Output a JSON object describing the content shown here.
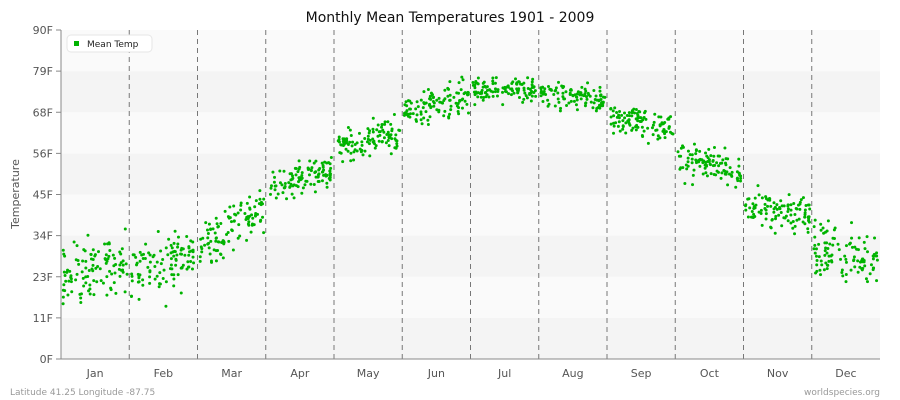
{
  "chart_data": {
    "type": "scatter",
    "title": "Monthly Mean Temperatures 1901 - 2009",
    "xlabel": "",
    "ylabel": "Temperature",
    "ylim": [
      0,
      90
    ],
    "yticks": [
      {
        "value": 0,
        "label": "0F"
      },
      {
        "value": 11.25,
        "label": "11F"
      },
      {
        "value": 22.5,
        "label": "23F"
      },
      {
        "value": 33.75,
        "label": "34F"
      },
      {
        "value": 45,
        "label": "45F"
      },
      {
        "value": 56.25,
        "label": "56F"
      },
      {
        "value": 67.5,
        "label": "68F"
      },
      {
        "value": 78.75,
        "label": "79F"
      },
      {
        "value": 90,
        "label": "90F"
      }
    ],
    "categories": [
      "Jan",
      "Feb",
      "Mar",
      "Apr",
      "May",
      "Jun",
      "Jul",
      "Aug",
      "Sep",
      "Oct",
      "Nov",
      "Dec"
    ],
    "points_per_month": 109,
    "grid": true,
    "legend": {
      "position": "top-left",
      "entries": [
        {
          "name": "Mean Temp",
          "color": "#00b300"
        }
      ]
    },
    "series": [
      {
        "name": "Mean Temp",
        "color": "#00b300",
        "monthly_summary": [
          {
            "month": "Jan",
            "start": 22,
            "end": 26,
            "sd": 5.5,
            "min": 8,
            "max": 36
          },
          {
            "month": "Feb",
            "start": 24,
            "end": 29,
            "sd": 5,
            "min": 14,
            "max": 37
          },
          {
            "month": "Mar",
            "start": 31,
            "end": 41,
            "sd": 4.5,
            "min": 24,
            "max": 49
          },
          {
            "month": "Apr",
            "start": 47,
            "end": 51,
            "sd": 2.8,
            "min": 42,
            "max": 56
          },
          {
            "month": "May",
            "start": 58,
            "end": 62,
            "sd": 3,
            "min": 54,
            "max": 68
          },
          {
            "month": "Jun",
            "start": 68,
            "end": 72,
            "sd": 2.6,
            "min": 63,
            "max": 78
          },
          {
            "month": "Jul",
            "start": 73.5,
            "end": 74,
            "sd": 2.2,
            "min": 68,
            "max": 81
          },
          {
            "month": "Aug",
            "start": 73,
            "end": 71,
            "sd": 2.2,
            "min": 66,
            "max": 79
          },
          {
            "month": "Sep",
            "start": 67,
            "end": 63,
            "sd": 2.4,
            "min": 59,
            "max": 71
          },
          {
            "month": "Oct",
            "start": 55,
            "end": 51,
            "sd": 3,
            "min": 43,
            "max": 62
          },
          {
            "month": "Nov",
            "start": 42,
            "end": 39,
            "sd": 3,
            "min": 33,
            "max": 48
          },
          {
            "month": "Dec",
            "start": 30,
            "end": 27,
            "sd": 4.8,
            "min": 15,
            "max": 38
          }
        ]
      }
    ]
  },
  "footer": {
    "location": "Latitude 41.25 Longitude -87.75",
    "source": "worldspecies.org"
  }
}
